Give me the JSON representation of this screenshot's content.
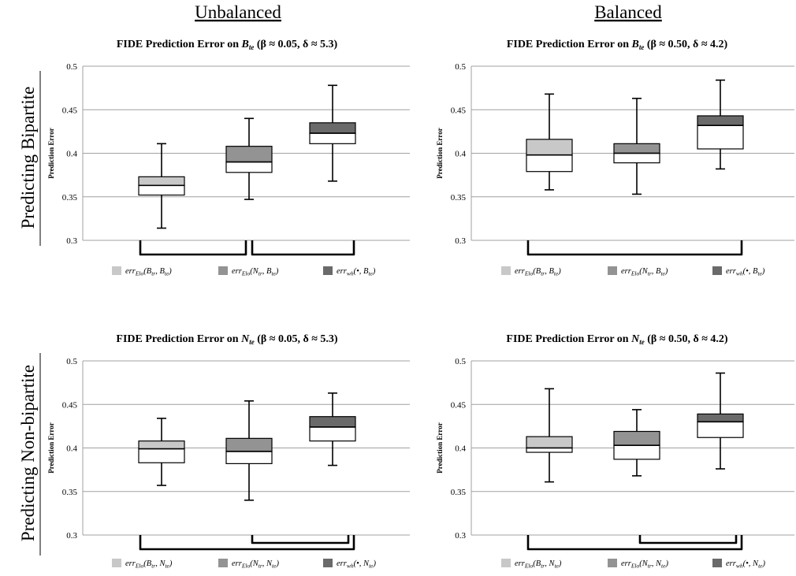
{
  "column_headers": [
    "Unbalanced",
    "Balanced"
  ],
  "row_headers": [
    "Predicting Bipartite",
    "Predicting Non-bipartite"
  ],
  "colors": {
    "light": "#c8c8c8",
    "medium": "#939393",
    "dark": "#6a6a6a",
    "grid": "#a0a0a0",
    "lower_box": "#ffffff"
  },
  "chart_data": [
    {
      "type": "box",
      "title": "FIDE Prediction Error on B_te (β ≈ 0.05, δ ≈ 5.3)",
      "title_parts": {
        "pre": "FIDE Prediction Error on ",
        "var": "B",
        "sub": "te",
        "post": " (β ≈ 0.05, δ ≈ 5.3)"
      },
      "ylabel": "Prediction Error",
      "ylim": [
        0.3,
        0.5
      ],
      "yticks": [
        "0.3",
        "0.35",
        "0.4",
        "0.45",
        "0.5"
      ],
      "grid": true,
      "brackets": "chained",
      "series": [
        {
          "name": "errElo(Btr, Bte)",
          "label": {
            "e": "err",
            "s1": "Elo",
            "args": "(B",
            "s2": "tr",
            "mid": ", B",
            "s3": "te",
            "end": ")"
          },
          "color": "light",
          "min": 0.314,
          "q1": 0.352,
          "median": 0.363,
          "q3": 0.373,
          "max": 0.411
        },
        {
          "name": "errElo(Ntr, Bte)",
          "label": {
            "e": "err",
            "s1": "Elo",
            "args": "(N",
            "s2": "tr",
            "mid": ", B",
            "s3": "te",
            "end": ")"
          },
          "color": "medium",
          "min": 0.347,
          "q1": 0.378,
          "median": 0.39,
          "q3": 0.408,
          "max": 0.44
        },
        {
          "name": "errwh(•, Bte)",
          "label": {
            "e": "err",
            "s1": "wh",
            "args": "(•",
            "s2": "",
            "mid": ", B",
            "s3": "te",
            "end": ")"
          },
          "color": "dark",
          "min": 0.368,
          "q1": 0.411,
          "median": 0.423,
          "q3": 0.435,
          "max": 0.478
        }
      ]
    },
    {
      "type": "box",
      "title": "FIDE Prediction Error on B_te (β ≈ 0.50, δ ≈ 4.2)",
      "title_parts": {
        "pre": "FIDE Prediction Error on ",
        "var": "B",
        "sub": "te",
        "post": " (β ≈ 0.50, δ ≈ 4.2)"
      },
      "ylabel": "Prediction Error",
      "ylim": [
        0.3,
        0.5
      ],
      "yticks": [
        "0.3",
        "0.35",
        "0.4",
        "0.45",
        "0.5"
      ],
      "grid": true,
      "brackets": "wide",
      "series": [
        {
          "name": "errElo(Btr, Bte)",
          "label": {
            "e": "err",
            "s1": "Elo",
            "args": "(B",
            "s2": "tr",
            "mid": ", B",
            "s3": "te",
            "end": ")"
          },
          "color": "light",
          "min": 0.358,
          "q1": 0.379,
          "median": 0.398,
          "q3": 0.416,
          "max": 0.468
        },
        {
          "name": "errElo(Ntr, Bte)",
          "label": {
            "e": "err",
            "s1": "Elo",
            "args": "(N",
            "s2": "tr",
            "mid": ", B",
            "s3": "te",
            "end": ")"
          },
          "color": "medium",
          "min": 0.353,
          "q1": 0.389,
          "median": 0.4,
          "q3": 0.411,
          "max": 0.463
        },
        {
          "name": "errwh(•, Bte)",
          "label": {
            "e": "err",
            "s1": "wh",
            "args": "(•",
            "s2": "",
            "mid": ", B",
            "s3": "te",
            "end": ")"
          },
          "color": "dark",
          "min": 0.382,
          "q1": 0.405,
          "median": 0.432,
          "q3": 0.443,
          "max": 0.484
        }
      ]
    },
    {
      "type": "box",
      "title": "FIDE Prediction Error on N_te (β ≈ 0.05, δ ≈ 5.3)",
      "title_parts": {
        "pre": "FIDE Prediction Error on ",
        "var": "N",
        "sub": "te",
        "post": " (β ≈ 0.05, δ ≈ 5.3)"
      },
      "ylabel": "Prediction Error",
      "ylim": [
        0.3,
        0.5
      ],
      "yticks": [
        "0.3",
        "0.35",
        "0.4",
        "0.45",
        "0.5"
      ],
      "grid": true,
      "brackets": "nested",
      "series": [
        {
          "name": "errElo(Btr, Nte)",
          "label": {
            "e": "err",
            "s1": "Elo",
            "args": "(B",
            "s2": "tr",
            "mid": ", N",
            "s3": "te",
            "end": ")"
          },
          "color": "light",
          "min": 0.357,
          "q1": 0.383,
          "median": 0.399,
          "q3": 0.408,
          "max": 0.434
        },
        {
          "name": "errElo(Ntr, Nte)",
          "label": {
            "e": "err",
            "s1": "Elo",
            "args": "(N",
            "s2": "tr",
            "mid": ", N",
            "s3": "te",
            "end": ")"
          },
          "color": "medium",
          "min": 0.34,
          "q1": 0.382,
          "median": 0.396,
          "q3": 0.411,
          "max": 0.454
        },
        {
          "name": "errwh(•, Nte)",
          "label": {
            "e": "err",
            "s1": "wh",
            "args": "(•",
            "s2": "",
            "mid": ", N",
            "s3": "te",
            "end": ")"
          },
          "color": "dark",
          "min": 0.38,
          "q1": 0.408,
          "median": 0.424,
          "q3": 0.436,
          "max": 0.463
        }
      ]
    },
    {
      "type": "box",
      "title": "FIDE Prediction Error on N_te (β ≈ 0.50, δ ≈ 4.2)",
      "title_parts": {
        "pre": "FIDE Prediction Error on ",
        "var": "N",
        "sub": "te",
        "post": " (β ≈ 0.50, δ ≈ 4.2)"
      },
      "ylabel": "Prediction Error",
      "ylim": [
        0.3,
        0.5
      ],
      "yticks": [
        "0.3",
        "0.35",
        "0.4",
        "0.45",
        "0.5"
      ],
      "grid": true,
      "brackets": "nested",
      "series": [
        {
          "name": "errElo(Btr, Nte)",
          "label": {
            "e": "err",
            "s1": "Elo",
            "args": "(B",
            "s2": "tr",
            "mid": ", N",
            "s3": "te",
            "end": ")"
          },
          "color": "light",
          "min": 0.361,
          "q1": 0.395,
          "median": 0.4,
          "q3": 0.413,
          "max": 0.468
        },
        {
          "name": "errElo(Ntr, Nte)",
          "label": {
            "e": "err",
            "s1": "Elo",
            "args": "(N",
            "s2": "tr",
            "mid": ", N",
            "s3": "te",
            "end": ")"
          },
          "color": "medium",
          "min": 0.368,
          "q1": 0.387,
          "median": 0.403,
          "q3": 0.419,
          "max": 0.444
        },
        {
          "name": "errwh(•, Nte)",
          "label": {
            "e": "err",
            "s1": "wh",
            "args": "(•",
            "s2": "",
            "mid": ", N",
            "s3": "te",
            "end": ")"
          },
          "color": "dark",
          "min": 0.376,
          "q1": 0.412,
          "median": 0.43,
          "q3": 0.439,
          "max": 0.486
        }
      ]
    }
  ]
}
